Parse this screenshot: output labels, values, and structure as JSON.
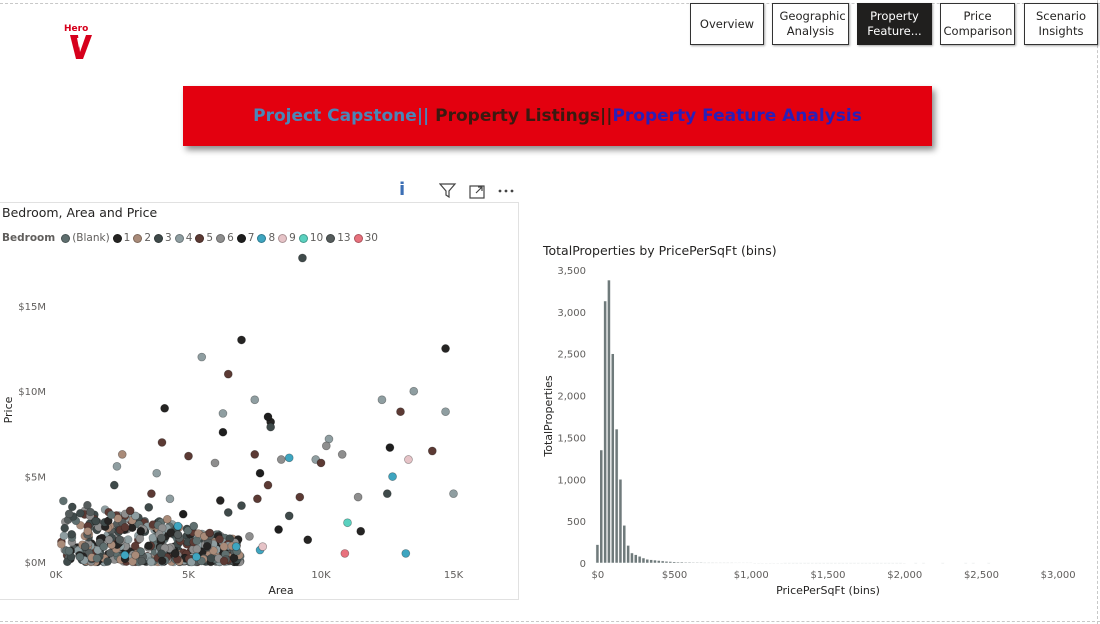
{
  "logo": {
    "text": "Hero"
  },
  "nav": {
    "buttons": [
      {
        "label": "Overview",
        "active": false
      },
      {
        "label": "Geographic Analysis",
        "active": false
      },
      {
        "label": "Property Feature...",
        "active": true
      },
      {
        "label": "Price Comparison",
        "active": false
      },
      {
        "label": "Scenario Insights",
        "active": false
      }
    ]
  },
  "banner": {
    "part1": "Project Capstone||",
    "part2": " Property Listings||",
    "part3": "Property Feature Analysis",
    "colors": {
      "part1": "#4a86b8",
      "part2": "#3a1a10",
      "part3": "#2a1fb8",
      "background": "#e3000f"
    }
  },
  "visual_header": {
    "info": "i"
  },
  "scatter": {
    "title": "Bedroom, Area and Price",
    "legend_title": "Bedroom",
    "legend": [
      {
        "label": "(Blank)",
        "color": "#5f6f6f"
      },
      {
        "label": "1",
        "color": "#252423"
      },
      {
        "label": "2",
        "color": "#a98b79"
      },
      {
        "label": "3",
        "color": "#3f4a4a"
      },
      {
        "label": "4",
        "color": "#8f9ea1"
      },
      {
        "label": "5",
        "color": "#5c3a34"
      },
      {
        "label": "6",
        "color": "#8e8e8e"
      },
      {
        "label": "7",
        "color": "#1e1e1e"
      },
      {
        "label": "8",
        "color": "#3ea5c0"
      },
      {
        "label": "9",
        "color": "#e6c3c7"
      },
      {
        "label": "10",
        "color": "#5ad1bf"
      },
      {
        "label": "13",
        "color": "#555c5c"
      },
      {
        "label": "30",
        "color": "#e8717d"
      }
    ],
    "x_axis_title": "Area",
    "y_axis_title": "Price"
  },
  "histogram": {
    "title": "TotalProperties by PricePerSqFt (bins)",
    "x_axis_title": "PricePerSqFt (bins)",
    "y_axis_title": "TotalProperties"
  },
  "chart_data": [
    {
      "type": "scatter",
      "title": "Bedroom, Area and Price",
      "xlabel": "Area",
      "ylabel": "Price",
      "x_ticks": [
        "0K",
        "5K",
        "10K",
        "15K"
      ],
      "y_ticks": [
        "$0M",
        "$5M",
        "$10M",
        "$15M"
      ],
      "xlim": [
        0,
        16000
      ],
      "ylim": [
        0,
        17800000
      ],
      "series": [
        {
          "name": "(Blank)",
          "points": [
            [
              900,
              300000
            ],
            [
              1800,
              900000
            ],
            [
              3200,
              600000
            ],
            [
              5200,
              2100000
            ]
          ]
        },
        {
          "name": "1",
          "points": [
            [
              7000,
              13000000
            ],
            [
              8100,
              8200000
            ],
            [
              14700,
              12500000
            ],
            [
              6200,
              3600000
            ],
            [
              4500,
              500000
            ],
            [
              9500,
              1300000
            ],
            [
              11500,
              1800000
            ],
            [
              4100,
              9000000
            ]
          ]
        },
        {
          "name": "2",
          "points": [
            [
              2500,
              6300000
            ],
            [
              1200,
              1800000
            ],
            [
              2100,
              1000000
            ],
            [
              3000,
              400000
            ],
            [
              4200,
              2500000
            ],
            [
              5600,
              1500000
            ]
          ]
        },
        {
          "name": "3",
          "points": [
            [
              2200,
              4500000
            ],
            [
              3500,
              3200000
            ],
            [
              1500,
              2400000
            ],
            [
              6500,
              2900000
            ],
            [
              8100,
              7900000
            ],
            [
              12500,
              4000000
            ],
            [
              9300,
              17800000
            ],
            [
              7000,
              3300000
            ],
            [
              8800,
              2700000
            ]
          ]
        },
        {
          "name": "4",
          "points": [
            [
              5500,
              12000000
            ],
            [
              7500,
              9500000
            ],
            [
              6300,
              8700000
            ],
            [
              3800,
              5200000
            ],
            [
              2300,
              5600000
            ],
            [
              12300,
              9500000
            ],
            [
              13500,
              10000000
            ],
            [
              15000,
              4000000
            ],
            [
              14700,
              8800000
            ],
            [
              9800,
              6000000
            ],
            [
              10300,
              7200000
            ],
            [
              4300,
              3700000
            ],
            [
              3000,
              2700000
            ]
          ]
        },
        {
          "name": "5",
          "points": [
            [
              6500,
              11000000
            ],
            [
              4000,
              7000000
            ],
            [
              5000,
              6200000
            ],
            [
              7500,
              6300000
            ],
            [
              8000,
              4500000
            ],
            [
              9200,
              3800000
            ],
            [
              10000,
              5800000
            ],
            [
              13000,
              8800000
            ],
            [
              14200,
              6500000
            ],
            [
              3600,
              4000000
            ],
            [
              2800,
              3000000
            ],
            [
              5800,
              1700000
            ],
            [
              7600,
              3700000
            ]
          ]
        },
        {
          "name": "6",
          "points": [
            [
              6000,
              5800000
            ],
            [
              8500,
              6000000
            ],
            [
              10200,
              6800000
            ],
            [
              11400,
              3800000
            ],
            [
              10800,
              6300000
            ],
            [
              2000,
              1300000
            ],
            [
              3300,
              1900000
            ],
            [
              7300,
              1500000
            ]
          ]
        },
        {
          "name": "7",
          "points": [
            [
              8000,
              8500000
            ],
            [
              6300,
              7600000
            ],
            [
              7700,
              5200000
            ],
            [
              8400,
              1900000
            ],
            [
              12600,
              6700000
            ],
            [
              3200,
              1800000
            ],
            [
              4800,
              2800000
            ]
          ]
        },
        {
          "name": "8",
          "points": [
            [
              8800,
              6100000
            ],
            [
              12700,
              5000000
            ],
            [
              13200,
              500000
            ],
            [
              5300,
              300000
            ],
            [
              6800,
              900000
            ],
            [
              2600,
              400000
            ],
            [
              7700,
              700000
            ],
            [
              4600,
              2100000
            ]
          ]
        },
        {
          "name": "9",
          "points": [
            [
              13300,
              6000000
            ],
            [
              7800,
              900000
            ]
          ]
        },
        {
          "name": "10",
          "points": [
            [
              11000,
              2300000
            ]
          ]
        },
        {
          "name": "13",
          "points": [
            [
              2400,
              1300000
            ],
            [
              4600,
              1600000
            ],
            [
              1100,
              900000
            ]
          ]
        },
        {
          "name": "30",
          "points": [
            [
              10900,
              500000
            ]
          ]
        }
      ]
    },
    {
      "type": "bar",
      "title": "TotalProperties by PricePerSqFt (bins)",
      "xlabel": "PricePerSqFt (bins)",
      "ylabel": "TotalProperties",
      "bin_width": 25,
      "x_ticks": [
        "$0",
        "$500",
        "$1,000",
        "$1,500",
        "$2,000",
        "$2,500",
        "$3,000"
      ],
      "x_tick_values": [
        0,
        500,
        1000,
        1500,
        2000,
        2500,
        3000
      ],
      "y_ticks": [
        "0",
        "500",
        "1,000",
        "1,500",
        "2,000",
        "2,500",
        "3,000",
        "3,500"
      ],
      "xlim": [
        -25,
        3025
      ],
      "ylim": [
        0,
        3500
      ],
      "bins": [
        0,
        25,
        50,
        75,
        100,
        125,
        150,
        175,
        200,
        225,
        250,
        275,
        300,
        325,
        350,
        375,
        400,
        425,
        450,
        475,
        500,
        525,
        550,
        575,
        600,
        625,
        650,
        675,
        700,
        725,
        750,
        775,
        800,
        825,
        850,
        875,
        900,
        925,
        950,
        975,
        1000,
        1025,
        1050,
        1075,
        1100,
        1125,
        1150,
        1175,
        1200,
        1225,
        1250,
        1275,
        1300,
        1325,
        1350,
        1375,
        1400,
        1425,
        1450,
        1475,
        1500,
        1525,
        1550,
        1575,
        1600,
        1625,
        1650,
        1675,
        1700,
        1725,
        1750,
        1775,
        1800,
        1825,
        1850,
        1875,
        1900,
        1925,
        1950,
        1975,
        2000,
        2075,
        2125,
        2250,
        2400,
        2450,
        2550
      ],
      "values": [
        220,
        1350,
        3130,
        3380,
        2500,
        1600,
        1000,
        450,
        210,
        120,
        100,
        80,
        60,
        45,
        40,
        35,
        30,
        25,
        20,
        18,
        15,
        12,
        12,
        10,
        10,
        8,
        8,
        8,
        6,
        6,
        6,
        5,
        5,
        5,
        5,
        5,
        4,
        4,
        4,
        4,
        4,
        3,
        3,
        3,
        3,
        3,
        3,
        3,
        3,
        2,
        2,
        2,
        2,
        2,
        2,
        2,
        2,
        2,
        2,
        2,
        2,
        2,
        2,
        2,
        2,
        2,
        2,
        2,
        2,
        2,
        2,
        2,
        2,
        2,
        2,
        2,
        2,
        2,
        2,
        2,
        3,
        2,
        2,
        2,
        2,
        2,
        2
      ]
    }
  ]
}
